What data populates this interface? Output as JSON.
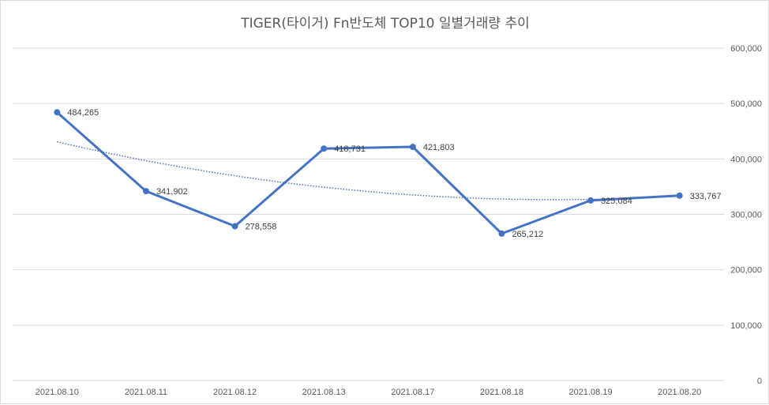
{
  "chart_data": {
    "type": "line",
    "title": "TIGER(타이거) Fn반도체 TOP10 일별거래량 추이",
    "categories": [
      "2021.08.10",
      "2021.08.11",
      "2021.08.12",
      "2021.08.13",
      "2021.08.17",
      "2021.08.18",
      "2021.08.19",
      "2021.08.20"
    ],
    "series": [
      {
        "values": [
          484265,
          341902,
          278558,
          418731,
          421803,
          265212,
          325084,
          333767
        ],
        "labels": [
          "484,265",
          "341,902",
          "278,558",
          "418,731",
          "421,803",
          "265,212",
          "325,084",
          "333,767"
        ],
        "color": "#4472c4"
      }
    ],
    "trendline": {
      "type": "polynomial",
      "style": "dotted",
      "color": "#4472c4"
    },
    "ylim": [
      0,
      600000
    ],
    "y_ticks": [
      "0",
      "100,000",
      "200,000",
      "300,000",
      "400,000",
      "500,000",
      "600,000"
    ],
    "y_axis_position": "right",
    "grid": true,
    "gridline_color": "#d9d9d9",
    "legend": "none"
  }
}
